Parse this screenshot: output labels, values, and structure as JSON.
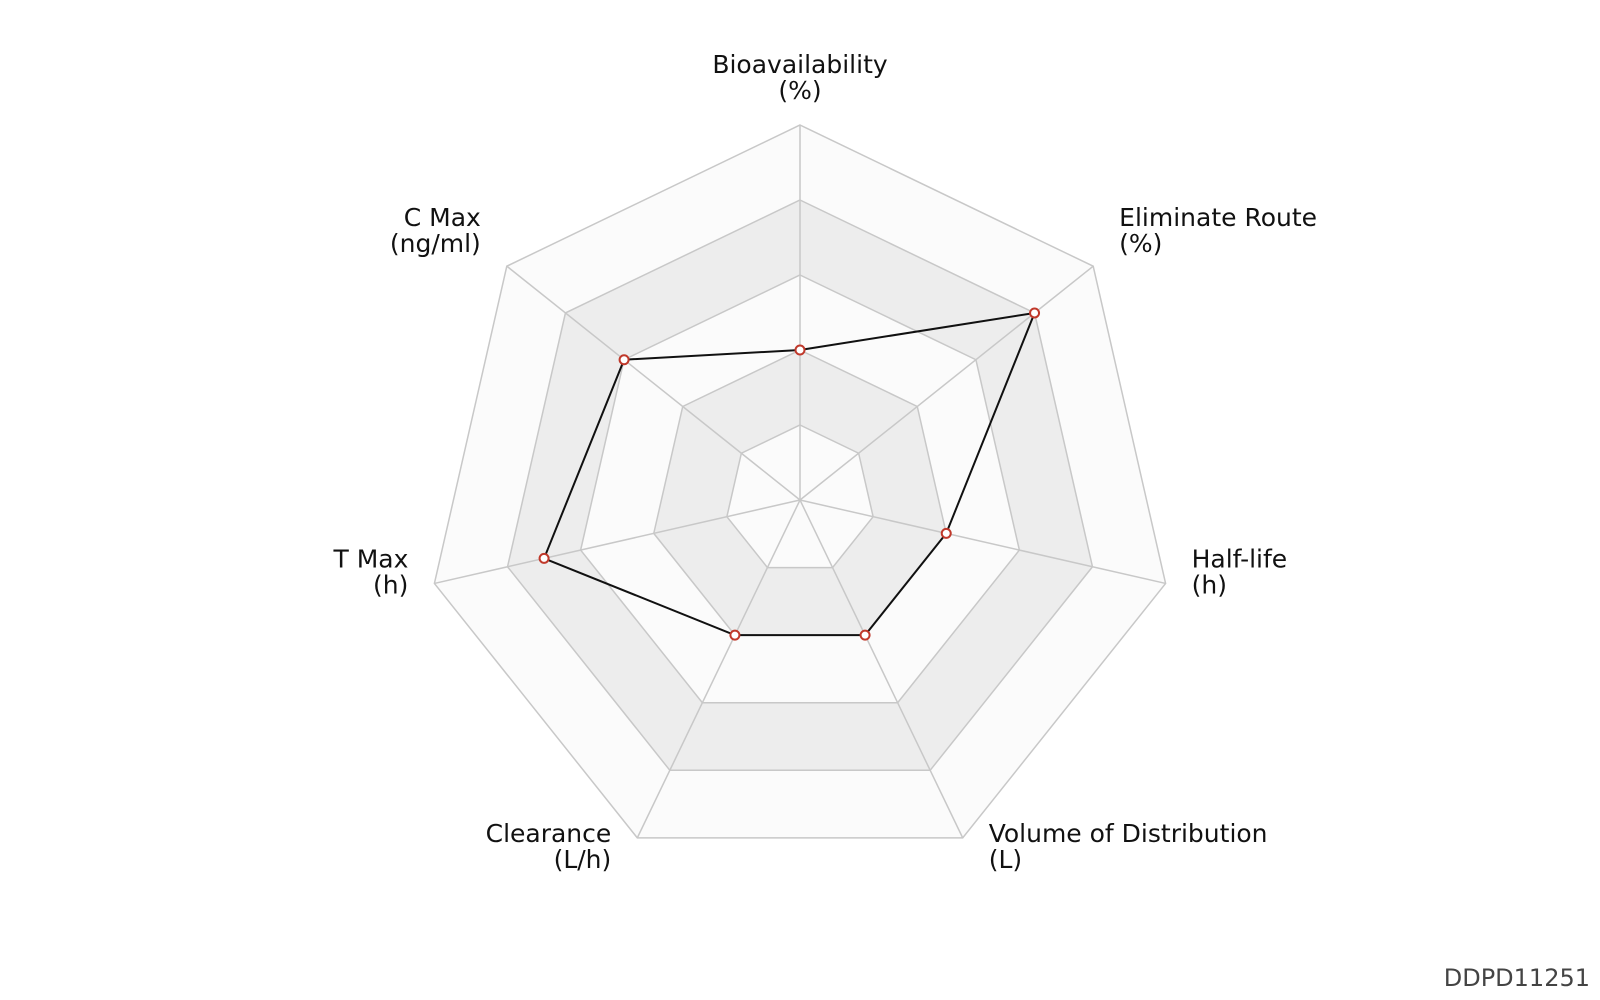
{
  "chart_data": {
    "type": "radar",
    "axes": [
      {
        "label": "Bioavailability",
        "unit": "(%)"
      },
      {
        "label": "Eliminate Route",
        "unit": "(%)"
      },
      {
        "label": "Half-life",
        "unit": "(h)"
      },
      {
        "label": "Volume of Distribution",
        "unit": "(L)"
      },
      {
        "label": "Clearance",
        "unit": "(L/h)"
      },
      {
        "label": "T Max",
        "unit": "(h)"
      },
      {
        "label": "C Max",
        "unit": "(ng/ml)"
      }
    ],
    "rings": 5,
    "values": [
      0.4,
      0.8,
      0.4,
      0.4,
      0.4,
      0.7,
      0.6
    ],
    "colors": {
      "line": "#111111",
      "marker_stroke": "#c0392b",
      "marker_fill": "#ffffff",
      "grid": "#c8c8c8",
      "band_light": "#fbfbfb",
      "band_dark": "#ededed"
    }
  },
  "watermark": "DDPD11251"
}
